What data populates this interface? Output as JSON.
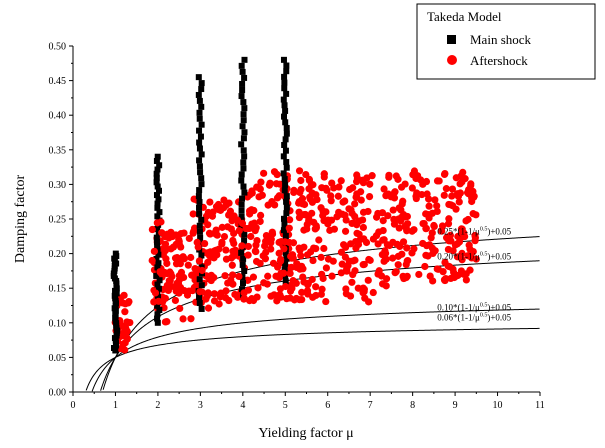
{
  "chart_data": {
    "type": "scatter",
    "xlabel": "Yielding factor μ",
    "ylabel": "Damping factor",
    "xlim": [
      0,
      11
    ],
    "ylim": [
      0,
      0.5
    ],
    "xticks": [
      "0",
      "1",
      "2",
      "3",
      "4",
      "5",
      "6",
      "7",
      "8",
      "9",
      "10",
      "11"
    ],
    "yticks": [
      "0.00",
      "0.05",
      "0.10",
      "0.15",
      "0.20",
      "0.25",
      "0.30",
      "0.35",
      "0.40",
      "0.45",
      "0.50"
    ],
    "grid": false,
    "legend": {
      "title": "Takeda Model",
      "placement": "top-right",
      "entries": [
        {
          "label": "Main shock",
          "marker": "square",
          "color": "#000000"
        },
        {
          "label": "Aftershock",
          "marker": "circle",
          "color": "#ff0000"
        }
      ]
    },
    "series": [
      {
        "name": "Main shock",
        "marker": "square",
        "color": "#000000",
        "columns": [
          {
            "x": 1,
            "ymin": 0.06,
            "ymax": 0.2
          },
          {
            "x": 2,
            "ymin": 0.1,
            "ymax": 0.34
          },
          {
            "x": 3,
            "ymin": 0.12,
            "ymax": 0.455
          },
          {
            "x": 4,
            "ymin": 0.14,
            "ymax": 0.48
          },
          {
            "x": 5,
            "ymin": 0.16,
            "ymax": 0.48
          }
        ]
      },
      {
        "name": "Aftershock",
        "marker": "circle",
        "color": "#ff0000",
        "clusters": [
          {
            "x": [
              0.95,
              1.35
            ],
            "ymin": 0.06,
            "ymax": 0.14
          },
          {
            "x": [
              1.9,
              2.8
            ],
            "ymin": 0.1,
            "ymax": 0.23
          },
          {
            "x": [
              2.8,
              4.0
            ],
            "ymin": 0.12,
            "ymax": 0.28
          },
          {
            "x": [
              4.0,
              5.5
            ],
            "ymin": 0.13,
            "ymax": 0.32
          },
          {
            "x": [
              5.5,
              7.5
            ],
            "ymin": 0.13,
            "ymax": 0.32
          },
          {
            "x": [
              7.5,
              9.5
            ],
            "ymin": 0.16,
            "ymax": 0.32
          }
        ]
      }
    ],
    "curves": [
      {
        "a": 0.25,
        "label": "0.25*(1-1/μ^0.5)+0.05"
      },
      {
        "a": 0.2,
        "label": "0.20*(1-1/μ^0.5)+0.05"
      },
      {
        "a": 0.1,
        "label": "0.10*(1-1/μ^0.5)+0.05"
      },
      {
        "a": 0.06,
        "label": "0.06*(1-1/μ^0.5)+0.05"
      }
    ]
  }
}
